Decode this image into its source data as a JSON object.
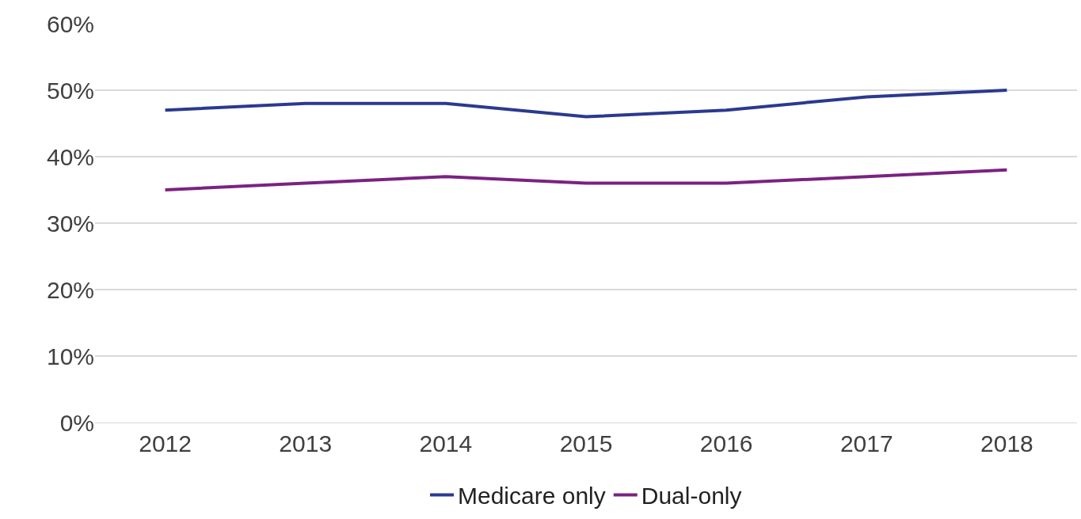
{
  "chart_data": {
    "type": "line",
    "categories": [
      "2012",
      "2013",
      "2014",
      "2015",
      "2016",
      "2017",
      "2018"
    ],
    "series": [
      {
        "name": "Medicare only",
        "color": "#2b3990",
        "values": [
          47,
          48,
          48,
          46,
          47,
          49,
          50
        ]
      },
      {
        "name": "Dual-only",
        "color": "#7b2281",
        "values": [
          35,
          36,
          37,
          36,
          36,
          37,
          38
        ]
      }
    ],
    "ylim": [
      0,
      60
    ],
    "yticks": [
      {
        "value": 0,
        "label": "0%"
      },
      {
        "value": 10,
        "label": "10%"
      },
      {
        "value": 20,
        "label": "20%"
      },
      {
        "value": 30,
        "label": "30%"
      },
      {
        "value": 40,
        "label": "40%"
      },
      {
        "value": 50,
        "label": "50%"
      },
      {
        "value": 60,
        "label": "60%"
      }
    ],
    "grid": "y",
    "legend": "bottom",
    "marker": "none",
    "line_style": "solid"
  }
}
